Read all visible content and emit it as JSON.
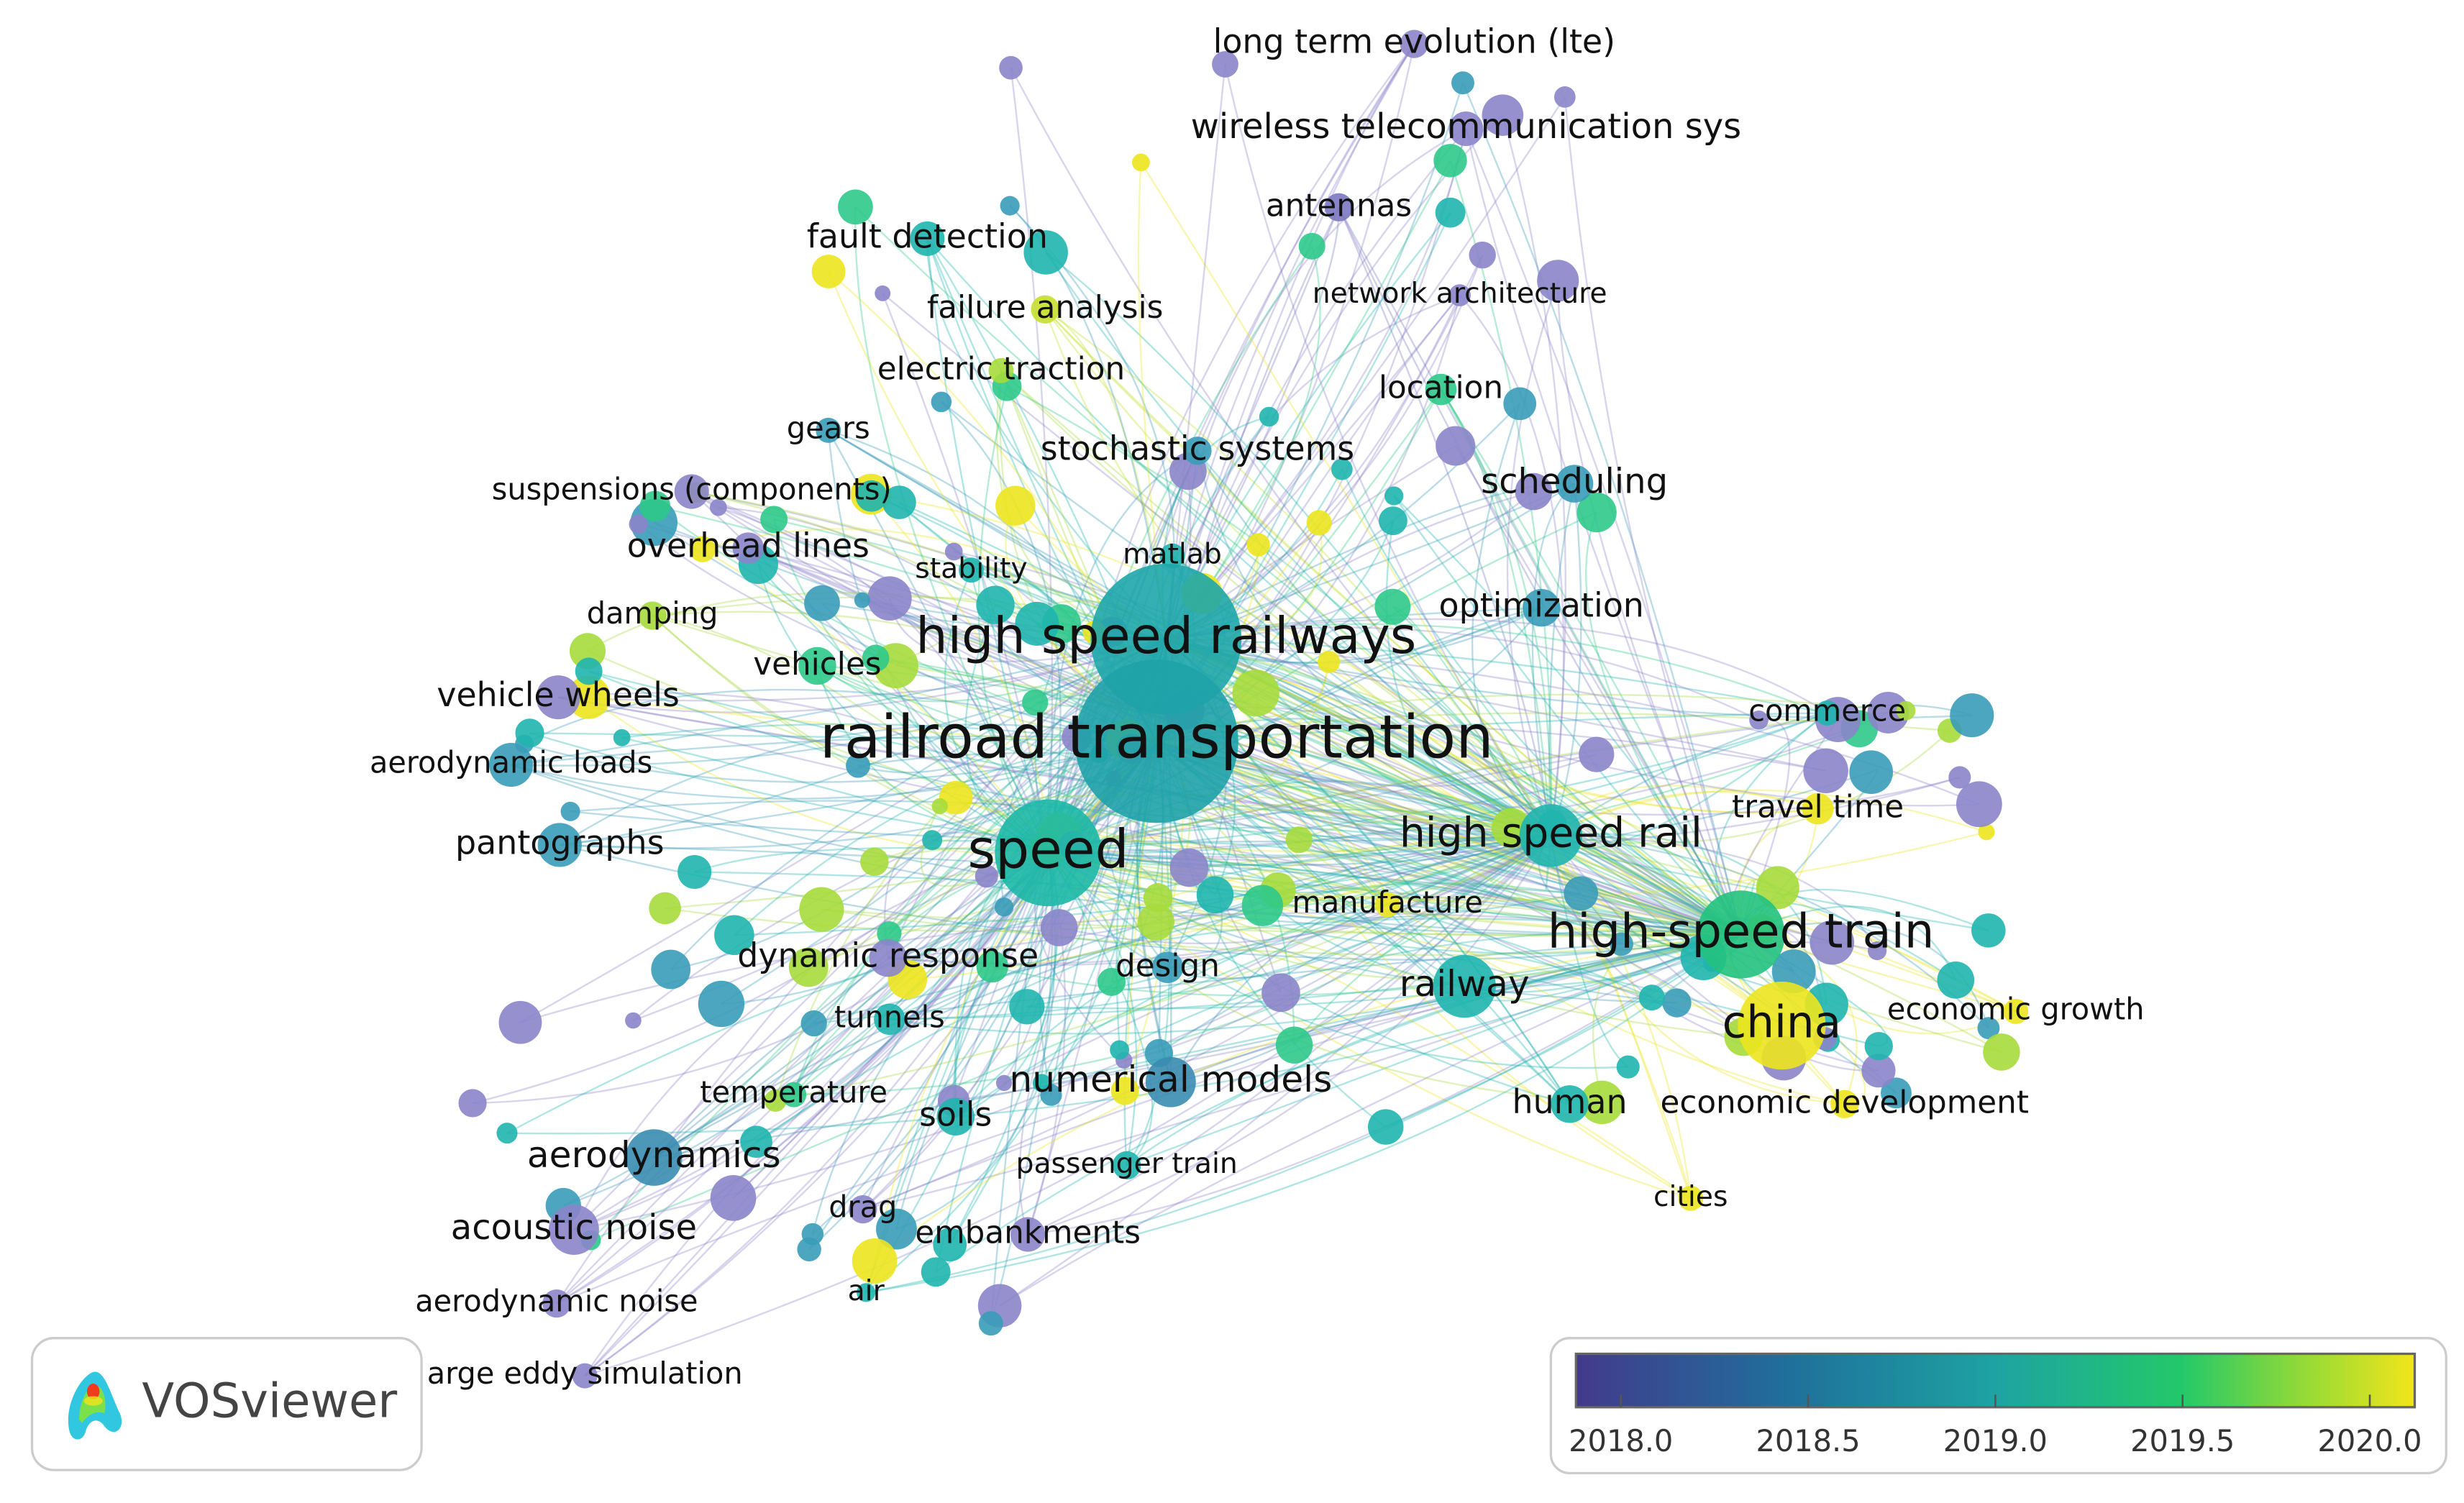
{
  "nodes": [
    {
      "label": "long term evolution (lte)",
      "color": "#8b85c9"
    },
    {
      "label": "wireless telecommunication sys",
      "color": "#8b85c9"
    },
    {
      "label": "antennas",
      "color": "#7b78c0"
    },
    {
      "label": "fault detection",
      "color": "#1fb5ae"
    },
    {
      "label": "failure analysis",
      "color": "#c5df2e"
    },
    {
      "label": "network architecture",
      "color": "#8b85c9"
    },
    {
      "label": "electric traction",
      "color": "#a6db3c"
    },
    {
      "label": "location",
      "color": "#2ec98a"
    },
    {
      "label": "gears",
      "color": "#3a9cb8"
    },
    {
      "label": "stochastic systems",
      "color": "#3a9cb8"
    },
    {
      "label": "scheduling",
      "color": "#3a9cb8"
    },
    {
      "label": "suspensions (components)",
      "color": "#8b85c9"
    },
    {
      "label": "overhead lines",
      "color": "#8b85c9"
    },
    {
      "label": "stability",
      "color": "#1fb5ae"
    },
    {
      "label": "matlab",
      "color": "#1fb5ae"
    },
    {
      "label": "optimization",
      "color": "#3a9cb8"
    },
    {
      "label": "damping",
      "color": "#a6db3c"
    },
    {
      "label": "high speed railways",
      "color": "#1ea6aa"
    },
    {
      "label": "vehicles",
      "color": "#2ec98a"
    },
    {
      "label": "vehicle wheels",
      "color": "#8b85c9"
    },
    {
      "label": "railroad transportation",
      "color": "#1ea2a8"
    },
    {
      "label": "commerce",
      "color": "#1fb5ae"
    },
    {
      "label": "aerodynamic loads",
      "color": "#3a9cb8"
    },
    {
      "label": "travel time",
      "color": "#ece51f"
    },
    {
      "label": "high speed rail",
      "color": "#1fb5ae"
    },
    {
      "label": "pantographs",
      "color": "#3a9cb8"
    },
    {
      "label": "speed",
      "color": "#1cb8a6"
    },
    {
      "label": "manufacture",
      "color": "#ece51f"
    },
    {
      "label": "high-speed train",
      "color": "#22c27e"
    },
    {
      "label": "dynamic response",
      "color": "#8b85c9"
    },
    {
      "label": "design",
      "color": "#3a9cb8"
    },
    {
      "label": "railway",
      "color": "#1fb5ae"
    },
    {
      "label": "economic growth",
      "color": "#ece51f"
    },
    {
      "label": "china",
      "color": "#ece51f"
    },
    {
      "label": "tunnels",
      "color": "#1fb5ae"
    },
    {
      "label": "numerical models",
      "color": "#3a8cb0"
    },
    {
      "label": "temperature",
      "color": "#2ec98a"
    },
    {
      "label": "human",
      "color": "#1fb5ae"
    },
    {
      "label": "economic development",
      "color": "#ece51f"
    },
    {
      "label": "soils",
      "color": "#1fb5ae"
    },
    {
      "label": "aerodynamics",
      "color": "#3a8cb0"
    },
    {
      "label": "passenger train",
      "color": "#1fb5ae"
    },
    {
      "label": "drag",
      "color": "#8b85c9"
    },
    {
      "label": "cities",
      "color": "#ece51f"
    },
    {
      "label": "acoustic noise",
      "color": "#8b85c9"
    },
    {
      "label": "embankments",
      "color": "#8b85c9"
    },
    {
      "label": "aerodynamic noise",
      "color": "#8b85c9"
    },
    {
      "label": "air",
      "color": "#1fb5ae"
    },
    {
      "label": "arge eddy simulation",
      "color": "#8b85c9"
    }
  ],
  "logo": {
    "text": "VOSviewer"
  },
  "color_scale": {
    "range": [
      2017.88,
      2020.12
    ],
    "ticks": [
      {
        "value": 2018,
        "label": "2018.0"
      },
      {
        "value": 2018.5,
        "label": "2018.5"
      },
      {
        "value": 2019,
        "label": "2019.0"
      },
      {
        "value": 2019.5,
        "label": "2019.5"
      },
      {
        "value": 2020,
        "label": "2020.0"
      }
    ]
  }
}
